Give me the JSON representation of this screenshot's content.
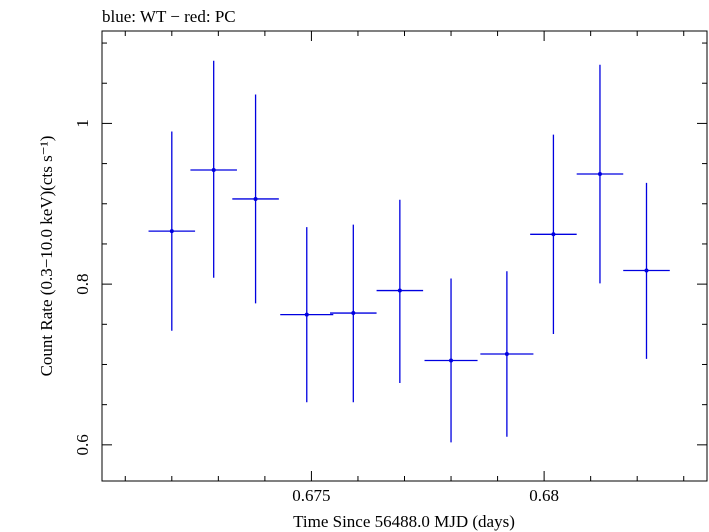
{
  "chart_data": {
    "type": "scatter",
    "title": "blue: WT − red: PC",
    "xlabel": "Time Since 56488.0 MJD (days)",
    "ylabel": "Count Rate (0.3−10.0 keV)(cts s⁻¹)",
    "xlim": [
      0.6705,
      0.6835
    ],
    "ylim": [
      0.555,
      1.115
    ],
    "x_ticks": [
      {
        "value": 0.675,
        "label": "0.675"
      },
      {
        "value": 0.68,
        "label": "0.68"
      }
    ],
    "y_ticks": [
      {
        "value": 0.6,
        "label": "0.6"
      },
      {
        "value": 0.8,
        "label": "0.8"
      },
      {
        "value": 1.0,
        "label": "1"
      }
    ],
    "series": [
      {
        "name": "WT",
        "color": "#0000e0",
        "points": [
          {
            "x": 0.672,
            "xerr": 0.0005,
            "y": 0.866,
            "ylo": 0.742,
            "yhi": 0.99
          },
          {
            "x": 0.6729,
            "xerr": 0.0005,
            "y": 0.942,
            "ylo": 0.808,
            "yhi": 1.078
          },
          {
            "x": 0.6738,
            "xerr": 0.0005,
            "y": 0.906,
            "ylo": 0.776,
            "yhi": 1.036
          },
          {
            "x": 0.6749,
            "xerr": 0.00057,
            "y": 0.762,
            "ylo": 0.653,
            "yhi": 0.871
          },
          {
            "x": 0.6759,
            "xerr": 0.0005,
            "y": 0.764,
            "ylo": 0.653,
            "yhi": 0.874
          },
          {
            "x": 0.6769,
            "xerr": 0.0005,
            "y": 0.792,
            "ylo": 0.677,
            "yhi": 0.905
          },
          {
            "x": 0.678,
            "xerr": 0.00057,
            "y": 0.705,
            "ylo": 0.603,
            "yhi": 0.807
          },
          {
            "x": 0.6792,
            "xerr": 0.00057,
            "y": 0.713,
            "ylo": 0.61,
            "yhi": 0.816
          },
          {
            "x": 0.6802,
            "xerr": 0.0005,
            "y": 0.862,
            "ylo": 0.738,
            "yhi": 0.986
          },
          {
            "x": 0.6812,
            "xerr": 0.0005,
            "y": 0.937,
            "ylo": 0.801,
            "yhi": 1.073
          },
          {
            "x": 0.6822,
            "xerr": 0.0005,
            "y": 0.817,
            "ylo": 0.707,
            "yhi": 0.926
          }
        ]
      }
    ]
  }
}
